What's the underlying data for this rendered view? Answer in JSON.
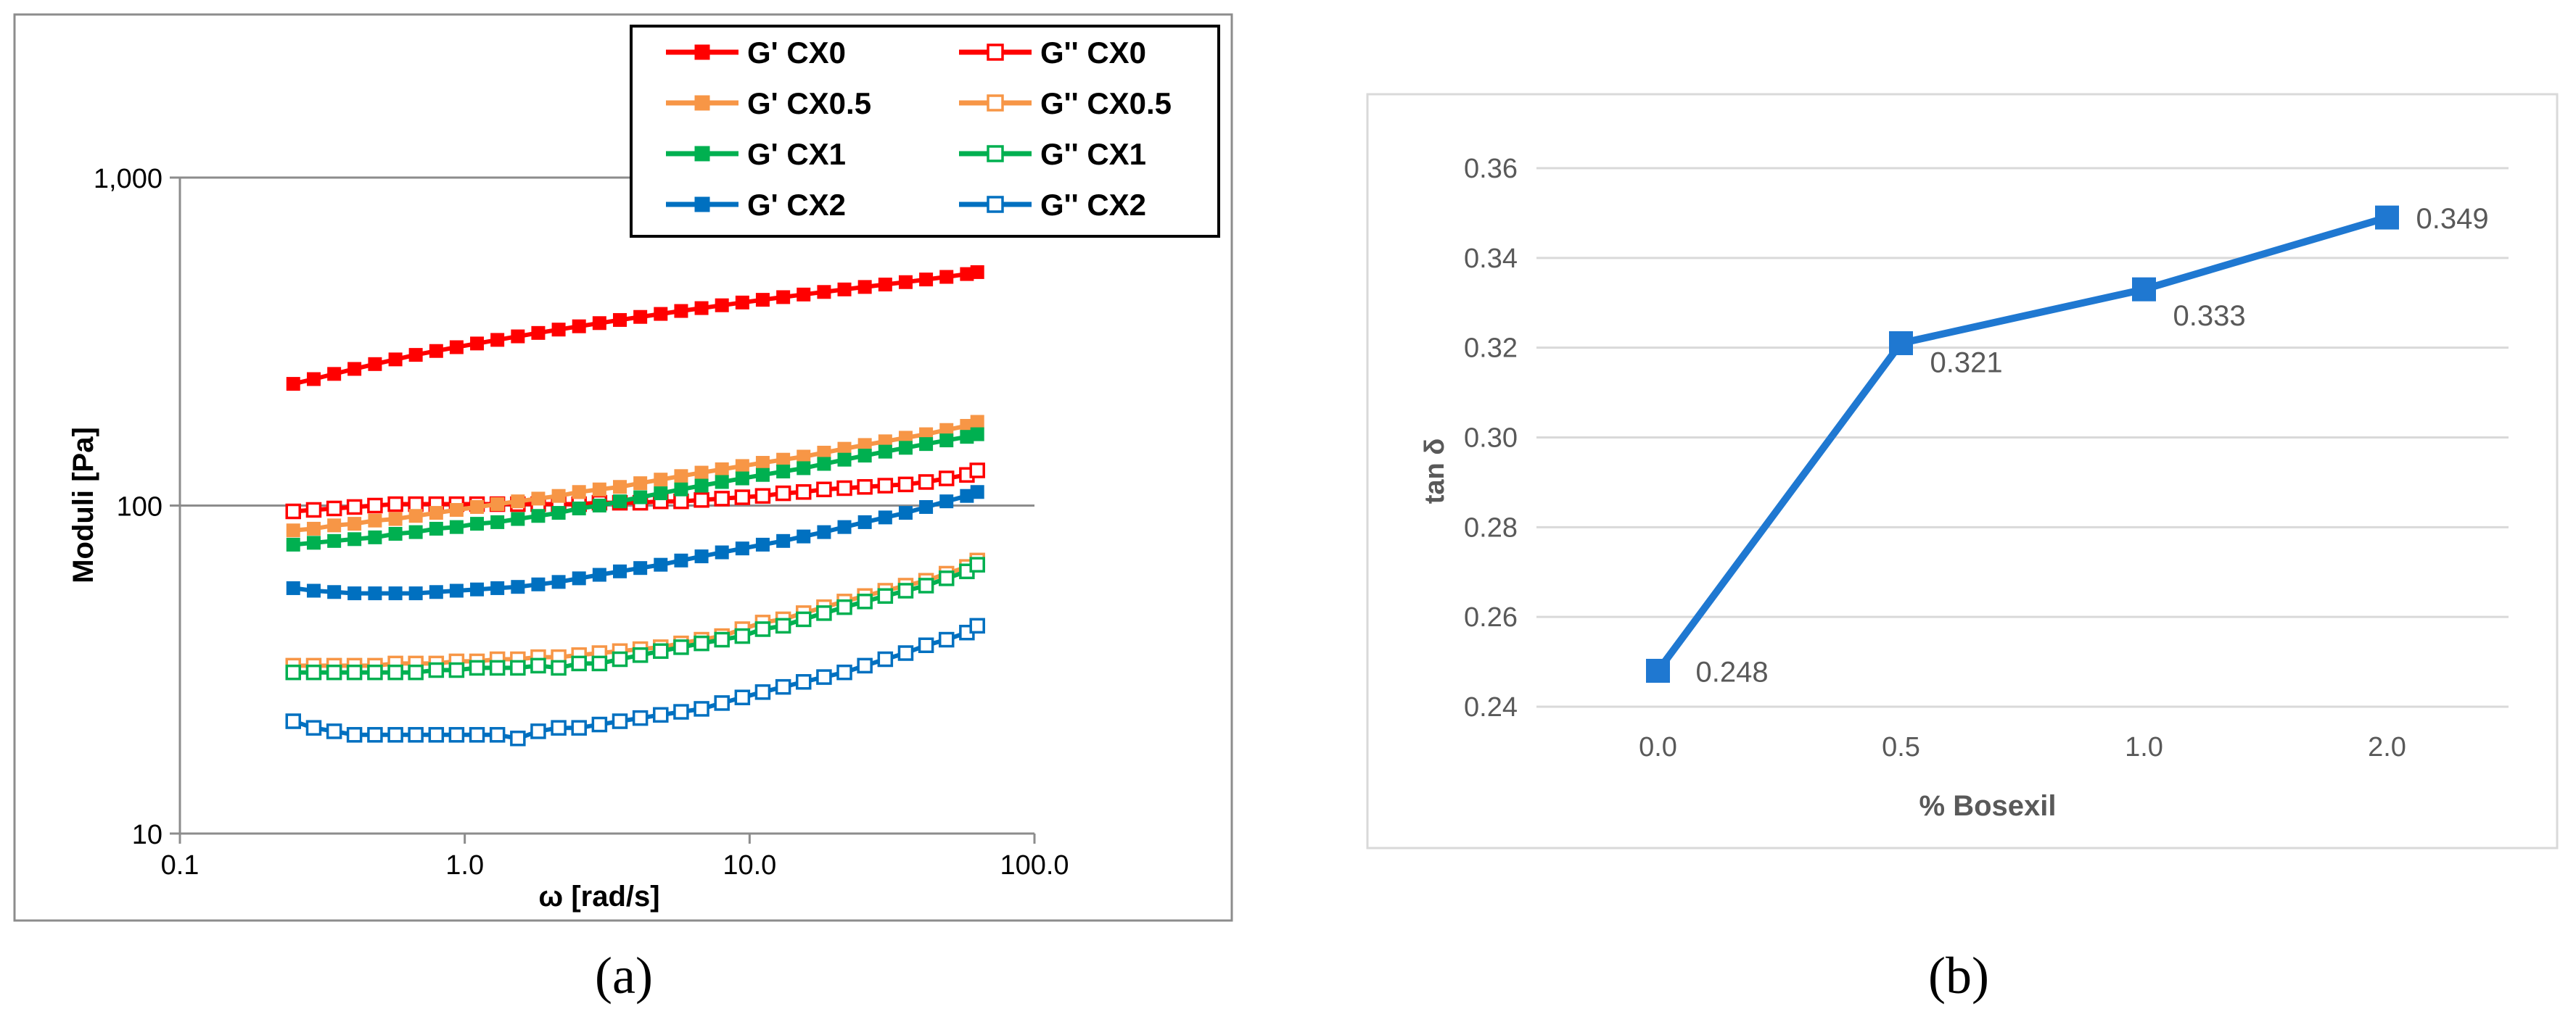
{
  "chart_data": [
    {
      "id": "a",
      "type": "line",
      "subfigure_label": "(a)",
      "title": "",
      "xlabel": "ω [rad/s]",
      "ylabel": "Moduli [Pa]",
      "xscale": "log",
      "yscale": "log",
      "xlim": [
        0.1,
        100.0
      ],
      "ylim": [
        10,
        1000
      ],
      "xticks": [
        0.1,
        1.0,
        10.0,
        100.0
      ],
      "xtick_labels": [
        "0.1",
        "1.0",
        "10.0",
        "100.0"
      ],
      "yticks": [
        10,
        100,
        1000
      ],
      "ytick_labels": [
        "10",
        "100",
        "1,000"
      ],
      "grid": "horizontal",
      "legend_position": "top-right",
      "x": [
        0.25,
        0.295,
        0.348,
        0.41,
        0.484,
        0.571,
        0.673,
        0.794,
        0.936,
        1.104,
        1.302,
        1.536,
        1.811,
        2.136,
        2.519,
        2.971,
        3.504,
        4.133,
        4.874,
        5.749,
        6.78,
        7.996,
        9.431,
        11.12,
        13.12,
        15.47,
        18.25,
        21.52,
        25.38,
        29.94,
        35.31,
        41.64,
        49.11,
        57.92,
        63.0
      ],
      "series": [
        {
          "name": "G' CX0",
          "color": "#ff0000",
          "marker": "filled-square",
          "values": [
            235,
            243,
            252,
            261,
            270,
            279,
            288,
            296,
            304,
            312,
            320,
            328,
            336,
            344,
            352,
            360,
            368,
            376,
            384,
            392,
            400,
            408,
            416,
            424,
            432,
            440,
            448,
            456,
            464,
            472,
            480,
            489,
            498,
            508,
            515
          ]
        },
        {
          "name": "G'' CX0",
          "color": "#ff0000",
          "marker": "open-square",
          "values": [
            96,
            97,
            98,
            99,
            100,
            101,
            101,
            101,
            101,
            101,
            101,
            101,
            101,
            101,
            101,
            102,
            102,
            102,
            103,
            103,
            104,
            105,
            106,
            107,
            109,
            110,
            112,
            113,
            114,
            115,
            116,
            118,
            121,
            124,
            128
          ]
        },
        {
          "name": "G' CX0.5",
          "color": "#f79646",
          "marker": "filled-square",
          "values": [
            84,
            85,
            87,
            88,
            90,
            91,
            93,
            95,
            97,
            99,
            101,
            103,
            105,
            107,
            110,
            112,
            114,
            117,
            120,
            123,
            126,
            129,
            132,
            135,
            138,
            141,
            145,
            149,
            153,
            157,
            161,
            165,
            170,
            175,
            180
          ]
        },
        {
          "name": "G'' CX0.5",
          "color": "#f79646",
          "marker": "open-square",
          "values": [
            32.5,
            32.5,
            32.5,
            32.5,
            32.5,
            33,
            33,
            33,
            33.5,
            33.5,
            34,
            34,
            34.5,
            34.5,
            35,
            35.5,
            36,
            36.5,
            37,
            38,
            39,
            40,
            42,
            44,
            45,
            47,
            49,
            51,
            53,
            55,
            57,
            59,
            62,
            65,
            68
          ]
        },
        {
          "name": "G' CX1",
          "color": "#00b050",
          "marker": "filled-square",
          "values": [
            76,
            77,
            78,
            79,
            80,
            82,
            83,
            85,
            86,
            88,
            89,
            91,
            93,
            95,
            98,
            100,
            103,
            106,
            109,
            112,
            115,
            118,
            121,
            124,
            127,
            130,
            134,
            138,
            142,
            146,
            150,
            154,
            158,
            162,
            165
          ]
        },
        {
          "name": "G'' CX1",
          "color": "#00b050",
          "marker": "open-square",
          "values": [
            31,
            31,
            31,
            31,
            31,
            31,
            31,
            31.5,
            31.5,
            32,
            32,
            32,
            32.5,
            32,
            33,
            33,
            34,
            35,
            36,
            37,
            38,
            39,
            40,
            42,
            43,
            45,
            47,
            49,
            51,
            53,
            55,
            57,
            60,
            63,
            66
          ]
        },
        {
          "name": "G' CX2",
          "color": "#0070c0",
          "marker": "filled-square",
          "values": [
            56,
            55,
            54.5,
            54,
            54,
            54,
            54,
            54.5,
            55,
            55.5,
            56,
            56.5,
            57.5,
            58.5,
            60,
            61.5,
            63,
            64.5,
            66,
            68,
            70,
            72,
            74,
            76,
            78,
            80.5,
            83,
            86,
            89,
            92,
            95,
            99,
            103,
            107,
            110
          ]
        },
        {
          "name": "G'' CX2",
          "color": "#0070c0",
          "marker": "open-square",
          "values": [
            22,
            21,
            20.5,
            20,
            20,
            20,
            20,
            20,
            20,
            20,
            20,
            19.5,
            20.5,
            21,
            21,
            21.5,
            22,
            22.5,
            23,
            23.5,
            24,
            25,
            26,
            27,
            28,
            29,
            30,
            31,
            32.5,
            34,
            35.5,
            37.5,
            39,
            41,
            43
          ]
        }
      ]
    },
    {
      "id": "b",
      "type": "line",
      "subfigure_label": "(b)",
      "title": "",
      "xlabel": "% Bosexil",
      "ylabel": "tan δ",
      "categories": [
        "0.0",
        "0.5",
        "1.0",
        "2.0"
      ],
      "values": [
        0.248,
        0.321,
        0.333,
        0.349
      ],
      "data_labels": [
        "0.248",
        "0.321",
        "0.333",
        "0.349"
      ],
      "ylim": [
        0.24,
        0.36
      ],
      "yticks": [
        0.24,
        0.26,
        0.28,
        0.3,
        0.32,
        0.34,
        0.36
      ],
      "ytick_labels": [
        "0.24",
        "0.26",
        "0.28",
        "0.30",
        "0.32",
        "0.34",
        "0.36"
      ],
      "grid": "horizontal",
      "color": "#1f78d1",
      "marker": "filled-square"
    }
  ]
}
